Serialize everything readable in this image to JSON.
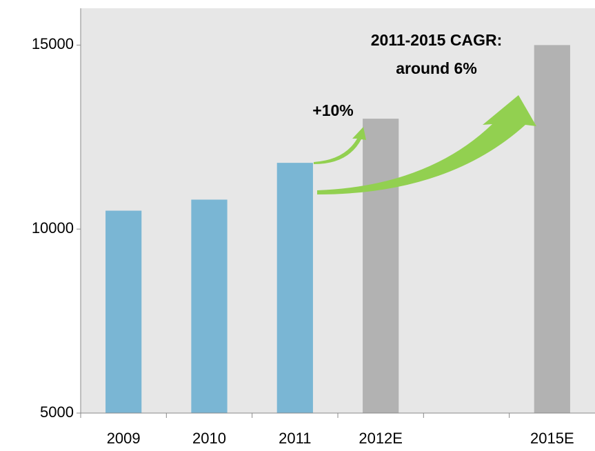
{
  "chart_data": {
    "type": "bar",
    "categories": [
      "2009",
      "2010",
      "2011",
      "2012E",
      null,
      "2015E"
    ],
    "values": [
      10500,
      10800,
      11800,
      13000,
      null,
      15000
    ],
    "colors": [
      "#7ab6d4",
      "#7ab6d4",
      "#7ab6d4",
      "#b2b2b2",
      "#b2b2b2",
      "#b2b2b2"
    ],
    "ylim": [
      5000,
      16000
    ],
    "yticks": [
      5000,
      10000,
      15000
    ],
    "annotations": [
      "+10%",
      "2011-2015 CAGR:",
      "around 6%"
    ],
    "annotation_color": "#1f4e96"
  }
}
